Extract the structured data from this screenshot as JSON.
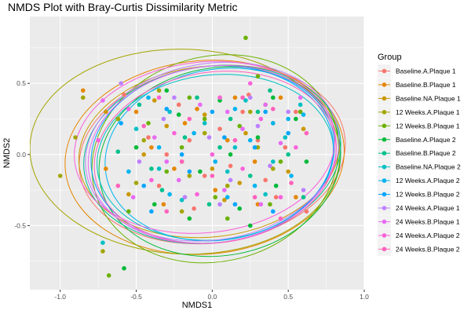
{
  "chart_data": {
    "type": "scatter",
    "title": "NMDS Plot with Bray-Curtis Dissimilarity Metric",
    "xlabel": "NMDS1",
    "ylabel": "NMDS2",
    "xlim": [
      -1.2,
      1.0
    ],
    "ylim": [
      -0.95,
      0.97
    ],
    "x_ticks": [
      -1.0,
      -0.5,
      0.0,
      0.5,
      1.0
    ],
    "x_tick_labels": [
      "-1.0",
      "-0.5",
      "0.0",
      "0.5",
      "1.0"
    ],
    "y_ticks": [
      -0.5,
      0.0,
      0.5
    ],
    "y_tick_labels": [
      "-0.5",
      "0.0",
      "0.5"
    ],
    "grid": true,
    "legend_position": "right",
    "legend_title": "Group",
    "series": [
      {
        "name": "Baseline.A.Plaque 1",
        "color": "#F8766D",
        "ellipse": {
          "cx": 0.0,
          "cy": 0.0,
          "rx": 0.88,
          "ry": 0.62,
          "angle": -8
        },
        "points": [
          [
            -0.58,
            0.42
          ],
          [
            -0.42,
            0.12
          ],
          [
            -0.35,
            -0.22
          ],
          [
            -0.22,
            0.35
          ],
          [
            -0.12,
            -0.38
          ],
          [
            0.05,
            0.18
          ],
          [
            0.12,
            -0.08
          ],
          [
            0.24,
            0.42
          ],
          [
            0.35,
            -0.18
          ],
          [
            0.48,
            0.05
          ],
          [
            0.55,
            0.3
          ],
          [
            0.62,
            -0.4
          ],
          [
            -0.05,
            -0.15
          ],
          [
            0.2,
            0.3
          ],
          [
            -0.3,
            0.0
          ],
          [
            0.3,
            0.1
          ],
          [
            -0.15,
            0.1
          ],
          [
            0.42,
            -0.3
          ]
        ]
      },
      {
        "name": "Baseline.B.Plaque 1",
        "color": "#E58700",
        "ellipse": {
          "cx": -0.05,
          "cy": -0.02,
          "rx": 0.92,
          "ry": 0.68,
          "angle": -5
        },
        "points": [
          [
            -0.85,
            0.45
          ],
          [
            -0.7,
            -0.1
          ],
          [
            -0.5,
            0.3
          ],
          [
            -0.32,
            -0.35
          ],
          [
            -0.18,
            0.22
          ],
          [
            0.02,
            -0.25
          ],
          [
            0.15,
            0.4
          ],
          [
            0.28,
            -0.05
          ],
          [
            0.4,
            0.22
          ],
          [
            0.55,
            -0.3
          ],
          [
            -0.4,
            0.05
          ],
          [
            0.1,
            0.1
          ],
          [
            -0.25,
            -0.1
          ],
          [
            0.3,
            -0.35
          ],
          [
            0.45,
            0.4
          ],
          [
            -0.1,
            0.32
          ]
        ]
      },
      {
        "name": "Baseline.NA.Plaque 1",
        "color": "#C99800",
        "ellipse": {
          "cx": -0.02,
          "cy": 0.02,
          "rx": 0.86,
          "ry": 0.6,
          "angle": -6
        },
        "points": [
          [
            -0.7,
            0.3
          ],
          [
            -0.55,
            -0.28
          ],
          [
            -0.38,
            0.38
          ],
          [
            -0.2,
            -0.05
          ],
          [
            -0.05,
            0.28
          ],
          [
            0.08,
            -0.32
          ],
          [
            0.22,
            0.15
          ],
          [
            0.35,
            0.35
          ],
          [
            0.5,
            -0.12
          ],
          [
            0.6,
            0.18
          ],
          [
            -0.3,
            0.2
          ],
          [
            0.0,
            -0.1
          ],
          [
            0.18,
            -0.2
          ],
          [
            -0.45,
            0.0
          ]
        ]
      },
      {
        "name": "12 Weeks.A.Plaque 1",
        "color": "#A3A500",
        "ellipse": {
          "cx": -0.18,
          "cy": 0.02,
          "rx": 1.02,
          "ry": 0.72,
          "angle": 2
        },
        "points": [
          [
            -1.0,
            -0.15
          ],
          [
            -0.9,
            0.12
          ],
          [
            -0.85,
            0.4
          ],
          [
            -0.72,
            -0.68
          ],
          [
            -0.62,
            0.25
          ],
          [
            -0.5,
            -0.2
          ],
          [
            -0.35,
            0.45
          ],
          [
            -0.2,
            -0.4
          ],
          [
            -0.05,
            0.15
          ],
          [
            0.1,
            -0.22
          ],
          [
            0.25,
            0.3
          ],
          [
            0.4,
            -0.1
          ],
          [
            -0.45,
            0.1
          ],
          [
            0.05,
            0.4
          ],
          [
            -0.15,
            -0.15
          ],
          [
            0.3,
            0.05
          ]
        ]
      },
      {
        "name": "12 Weeks.B.Plaque 1",
        "color": "#6BB100",
        "ellipse": {
          "cx": 0.02,
          "cy": -0.03,
          "rx": 0.82,
          "ry": 0.72,
          "angle": -15
        },
        "points": [
          [
            -0.68,
            -0.85
          ],
          [
            -0.55,
            -0.4
          ],
          [
            -0.42,
            0.22
          ],
          [
            -0.3,
            -0.12
          ],
          [
            -0.15,
            0.4
          ],
          [
            0.02,
            -0.3
          ],
          [
            0.18,
            0.2
          ],
          [
            0.3,
            0.55
          ],
          [
            0.22,
            0.82
          ],
          [
            0.45,
            -0.05
          ],
          [
            0.58,
            0.3
          ],
          [
            -0.2,
            0.05
          ],
          [
            0.1,
            -0.45
          ],
          [
            0.38,
            -0.35
          ],
          [
            -0.05,
            0.25
          ]
        ]
      },
      {
        "name": "Baseline.A.Plaque 2",
        "color": "#00BA38",
        "ellipse": {
          "cx": 0.05,
          "cy": -0.05,
          "rx": 0.8,
          "ry": 0.66,
          "angle": -10
        },
        "points": [
          [
            -0.58,
            -0.8
          ],
          [
            -0.5,
            0.05
          ],
          [
            -0.38,
            -0.35
          ],
          [
            -0.22,
            0.28
          ],
          [
            -0.08,
            -0.12
          ],
          [
            0.05,
            0.38
          ],
          [
            0.18,
            -0.38
          ],
          [
            0.3,
            0.12
          ],
          [
            0.42,
            -0.22
          ],
          [
            0.55,
            0.25
          ],
          [
            0.62,
            -0.05
          ],
          [
            -0.3,
            0.45
          ],
          [
            0.12,
            0.0
          ],
          [
            0.25,
            -0.5
          ],
          [
            -0.15,
            -0.45
          ],
          [
            0.4,
            0.4
          ]
        ]
      },
      {
        "name": "Baseline.B.Plaque 2",
        "color": "#00C08B",
        "ellipse": {
          "cx": 0.0,
          "cy": 0.0,
          "rx": 0.85,
          "ry": 0.62,
          "angle": -8
        },
        "points": [
          [
            -0.62,
            0.02
          ],
          [
            -0.48,
            0.35
          ],
          [
            -0.33,
            -0.25
          ],
          [
            -0.18,
            0.12
          ],
          [
            -0.02,
            -0.35
          ],
          [
            0.12,
            0.25
          ],
          [
            0.25,
            -0.15
          ],
          [
            0.38,
            0.45
          ],
          [
            0.5,
            0.0
          ],
          [
            0.6,
            -0.3
          ],
          [
            -0.4,
            -0.1
          ],
          [
            0.05,
            0.05
          ],
          [
            0.3,
            0.3
          ],
          [
            -0.1,
            0.4
          ]
        ]
      },
      {
        "name": "Baseline.NA.Plaque 2",
        "color": "#00BFC4",
        "ellipse": {
          "cx": 0.02,
          "cy": -0.02,
          "rx": 0.78,
          "ry": 0.58,
          "angle": -6
        },
        "points": [
          [
            -0.72,
            -0.62
          ],
          [
            -0.5,
            0.18
          ],
          [
            -0.35,
            -0.1
          ],
          [
            -0.2,
            -0.32
          ],
          [
            -0.05,
            0.22
          ],
          [
            0.1,
            -0.12
          ],
          [
            0.22,
            0.38
          ],
          [
            0.35,
            -0.28
          ],
          [
            0.48,
            0.12
          ],
          [
            0.58,
            0.35
          ],
          [
            -0.28,
            0.3
          ],
          [
            0.15,
            0.05
          ],
          [
            0.4,
            -0.05
          ]
        ]
      },
      {
        "name": "12 Weeks.A.Plaque 2",
        "color": "#00B4EF",
        "ellipse": {
          "cx": 0.05,
          "cy": 0.0,
          "rx": 0.76,
          "ry": 0.6,
          "angle": -10
        },
        "points": [
          [
            -0.55,
            -0.12
          ],
          [
            -0.42,
            0.4
          ],
          [
            -0.28,
            -0.28
          ],
          [
            -0.12,
            0.15
          ],
          [
            0.02,
            -0.05
          ],
          [
            0.15,
            0.32
          ],
          [
            0.28,
            -0.22
          ],
          [
            0.4,
            0.22
          ],
          [
            0.52,
            -0.15
          ],
          [
            0.6,
            0.28
          ],
          [
            0.5,
            0.25
          ],
          [
            -0.35,
            0.05
          ],
          [
            0.1,
            -0.3
          ],
          [
            0.25,
            0.1
          ]
        ]
      },
      {
        "name": "12 Weeks.B.Plaque 2",
        "color": "#00A5FF",
        "ellipse": {
          "cx": 0.0,
          "cy": 0.0,
          "rx": 0.8,
          "ry": 0.62,
          "angle": -7
        },
        "points": [
          [
            -0.6,
            0.22
          ],
          [
            -0.45,
            -0.22
          ],
          [
            -0.3,
            0.32
          ],
          [
            -0.15,
            -0.12
          ],
          [
            0.0,
            0.3
          ],
          [
            0.15,
            -0.35
          ],
          [
            0.28,
            0.05
          ],
          [
            0.4,
            -0.4
          ],
          [
            0.5,
            0.15
          ],
          [
            -0.2,
            0.0
          ],
          [
            0.08,
            0.12
          ],
          [
            0.35,
            0.3
          ],
          [
            -0.4,
            -0.4
          ]
        ]
      },
      {
        "name": "24 Weeks.A.Plaque 1",
        "color": "#BC81FF",
        "ellipse": {
          "cx": 0.0,
          "cy": 0.02,
          "rx": 0.84,
          "ry": 0.62,
          "angle": -9
        },
        "points": [
          [
            -0.6,
            0.5
          ],
          [
            -0.48,
            -0.05
          ],
          [
            -0.32,
            0.25
          ],
          [
            -0.18,
            -0.3
          ],
          [
            -0.02,
            0.12
          ],
          [
            0.12,
            -0.18
          ],
          [
            0.25,
            0.4
          ],
          [
            0.38,
            -0.08
          ],
          [
            0.5,
            0.3
          ],
          [
            0.6,
            -0.25
          ],
          [
            -0.25,
            0.4
          ],
          [
            0.05,
            -0.35
          ],
          [
            0.3,
            0.2
          ]
        ]
      },
      {
        "name": "24 Weeks.B.Plaque 1",
        "color": "#E76BF3",
        "ellipse": {
          "cx": 0.0,
          "cy": 0.0,
          "rx": 0.82,
          "ry": 0.62,
          "angle": -8
        },
        "points": [
          [
            -0.72,
            0.38
          ],
          [
            -0.52,
            -0.3
          ],
          [
            -0.38,
            0.12
          ],
          [
            -0.22,
            -0.18
          ],
          [
            -0.08,
            0.35
          ],
          [
            0.08,
            -0.25
          ],
          [
            0.2,
            0.18
          ],
          [
            0.32,
            -0.35
          ],
          [
            0.45,
            0.08
          ],
          [
            0.58,
            0.4
          ],
          [
            -0.3,
            -0.05
          ],
          [
            0.1,
            0.3
          ],
          [
            0.35,
            0.35
          ]
        ]
      },
      {
        "name": "24 Weeks.A.Plaque 2",
        "color": "#FA62DB",
        "ellipse": {
          "cx": -0.05,
          "cy": 0.05,
          "rx": 0.86,
          "ry": 0.6,
          "angle": -6
        },
        "points": [
          [
            -0.75,
            0.1
          ],
          [
            -0.55,
            0.32
          ],
          [
            -0.4,
            -0.18
          ],
          [
            -0.25,
            0.15
          ],
          [
            -0.1,
            -0.28
          ],
          [
            0.05,
            0.4
          ],
          [
            0.2,
            -0.1
          ],
          [
            0.32,
            0.25
          ],
          [
            0.45,
            -0.3
          ],
          [
            0.55,
            0.05
          ],
          [
            -0.35,
            0.4
          ],
          [
            0.0,
            0.0
          ],
          [
            0.25,
            0.5
          ]
        ]
      },
      {
        "name": "24 Weeks.B.Plaque 2",
        "color": "#FF62BC",
        "ellipse": {
          "cx": 0.02,
          "cy": -0.02,
          "rx": 0.8,
          "ry": 0.6,
          "angle": -8
        },
        "points": [
          [
            -0.62,
            -0.22
          ],
          [
            -0.45,
            0.2
          ],
          [
            -0.3,
            -0.4
          ],
          [
            -0.15,
            0.25
          ],
          [
            0.0,
            -0.15
          ],
          [
            0.15,
            0.1
          ],
          [
            0.28,
            -0.3
          ],
          [
            0.4,
            0.32
          ],
          [
            0.52,
            -0.2
          ],
          [
            0.62,
            0.15
          ],
          [
            -0.2,
            -0.05
          ],
          [
            0.2,
            0.4
          ],
          [
            0.45,
            -0.45
          ]
        ]
      }
    ]
  }
}
